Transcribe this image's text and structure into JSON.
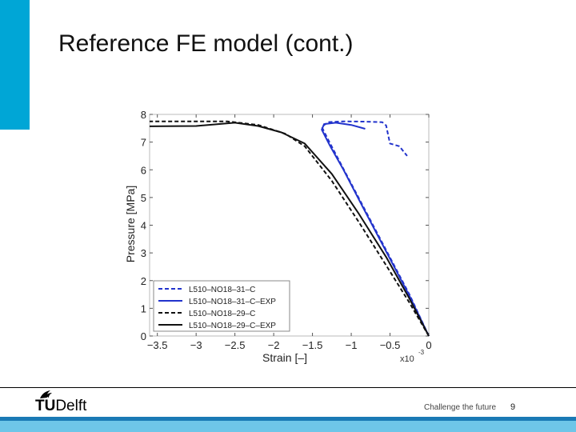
{
  "slide": {
    "title": "Reference FE model (cont.)",
    "slogan": "Challenge the future",
    "page_number": "9",
    "logo": {
      "mark": "TU",
      "name": "Delft"
    },
    "colors": {
      "accent": "#00a6d6",
      "bar_dark": "#1a7ab5",
      "bar_light": "#6ec6e8"
    }
  },
  "chart_data": {
    "type": "line",
    "xlabel": "Strain [–]",
    "ylabel": "Pressure [MPa]",
    "x_multiplier": "x10",
    "x_exponent": "-3",
    "xlim": [
      -3.6,
      0
    ],
    "ylim": [
      0,
      8
    ],
    "xticks": [
      -3.5,
      -3,
      -2.5,
      -2,
      -1.5,
      -1,
      -0.5,
      0
    ],
    "xtick_labels": [
      "−3.5",
      "−3",
      "−2.5",
      "−2",
      "−1.5",
      "−1",
      "−0.5",
      "0"
    ],
    "yticks": [
      0,
      1,
      2,
      3,
      4,
      5,
      6,
      7,
      8
    ],
    "ytick_labels": [
      "0",
      "1",
      "2",
      "3",
      "4",
      "5",
      "6",
      "7",
      "8"
    ],
    "grid": false,
    "legend_position": "bottom-left",
    "series": [
      {
        "name": "L510–NO18–31–C",
        "color": "#2233cc",
        "dash": "dashed",
        "points": [
          [
            0,
            0
          ],
          [
            -0.25,
            1.5
          ],
          [
            -0.55,
            3.1
          ],
          [
            -0.85,
            4.7
          ],
          [
            -1.15,
            6.3
          ],
          [
            -1.3,
            7.1
          ],
          [
            -1.38,
            7.55
          ],
          [
            -1.3,
            7.72
          ],
          [
            -1.1,
            7.75
          ],
          [
            -0.85,
            7.74
          ],
          [
            -0.6,
            7.72
          ],
          [
            -0.55,
            7.6
          ],
          [
            -0.52,
            7.2
          ],
          [
            -0.5,
            6.95
          ],
          [
            -0.38,
            6.85
          ],
          [
            -0.28,
            6.5
          ]
        ]
      },
      {
        "name": "L510–NO18–31–C–EXP",
        "color": "#2233cc",
        "dash": "solid",
        "points": [
          [
            0,
            0
          ],
          [
            -0.25,
            1.45
          ],
          [
            -0.55,
            3.05
          ],
          [
            -0.85,
            4.65
          ],
          [
            -1.1,
            6.0
          ],
          [
            -1.28,
            6.9
          ],
          [
            -1.38,
            7.45
          ],
          [
            -1.35,
            7.65
          ],
          [
            -1.2,
            7.7
          ],
          [
            -1.0,
            7.62
          ],
          [
            -0.82,
            7.48
          ]
        ]
      },
      {
        "name": "L510–NO18–29–C",
        "color": "#111111",
        "dash": "dashed",
        "points": [
          [
            0,
            0
          ],
          [
            -0.25,
            1.2
          ],
          [
            -0.55,
            2.55
          ],
          [
            -0.9,
            4.1
          ],
          [
            -1.25,
            5.6
          ],
          [
            -1.6,
            6.85
          ],
          [
            -1.85,
            7.3
          ],
          [
            -2.2,
            7.62
          ],
          [
            -2.6,
            7.75
          ],
          [
            -3.0,
            7.75
          ],
          [
            -3.6,
            7.75
          ]
        ]
      },
      {
        "name": "L510–NO18–29–C–EXP",
        "color": "#111111",
        "dash": "solid",
        "points": [
          [
            0,
            0
          ],
          [
            -0.25,
            1.35
          ],
          [
            -0.55,
            2.85
          ],
          [
            -0.9,
            4.4
          ],
          [
            -1.25,
            5.85
          ],
          [
            -1.6,
            6.95
          ],
          [
            -1.9,
            7.35
          ],
          [
            -2.2,
            7.58
          ],
          [
            -2.5,
            7.7
          ],
          [
            -3.0,
            7.58
          ],
          [
            -3.6,
            7.57
          ]
        ]
      }
    ]
  }
}
